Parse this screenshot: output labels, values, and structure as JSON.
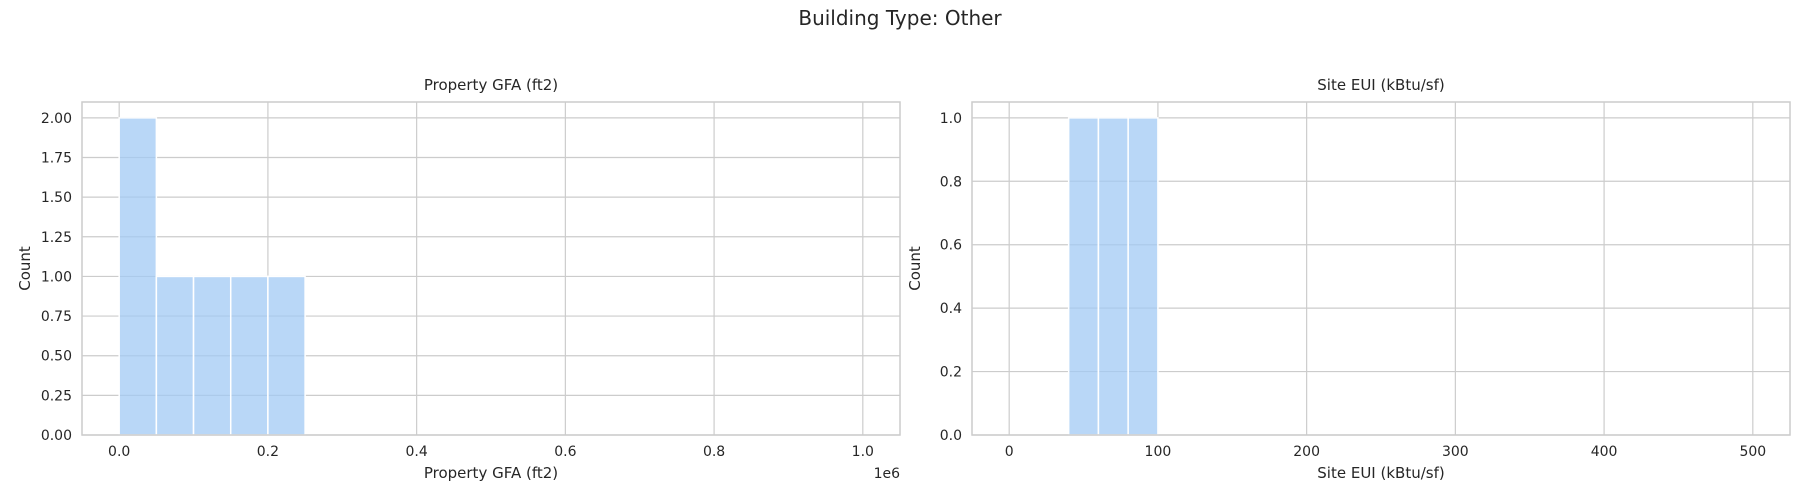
{
  "figure": {
    "title": "Building Type: Other"
  },
  "chart_data": [
    {
      "type": "bar",
      "title": "Property GFA (ft2)",
      "xlabel": "Property GFA (ft2)",
      "ylabel": "Count",
      "x_offset_label": "1e6",
      "xlim": [
        -0.05,
        1.05
      ],
      "ylim": [
        0,
        2.1
      ],
      "xticks": [
        0.0,
        0.2,
        0.4,
        0.6,
        0.8,
        1.0
      ],
      "xtick_labels": [
        "0.0",
        "0.2",
        "0.4",
        "0.6",
        "0.8",
        "1.0"
      ],
      "yticks": [
        0.0,
        0.25,
        0.5,
        0.75,
        1.0,
        1.25,
        1.5,
        1.75,
        2.0
      ],
      "ytick_labels": [
        "0.00",
        "0.25",
        "0.50",
        "0.75",
        "1.00",
        "1.25",
        "1.50",
        "1.75",
        "2.00"
      ],
      "grid": true,
      "color": "#a1c9f4",
      "bins": [
        {
          "x0": 0.0,
          "x1": 0.05,
          "count": 2
        },
        {
          "x0": 0.05,
          "x1": 0.1,
          "count": 1
        },
        {
          "x0": 0.1,
          "x1": 0.15,
          "count": 1
        },
        {
          "x0": 0.15,
          "x1": 0.2,
          "count": 1
        },
        {
          "x0": 0.2,
          "x1": 0.25,
          "count": 1
        }
      ]
    },
    {
      "type": "bar",
      "title": "Site EUI (kBtu/sf)",
      "xlabel": "Site EUI (kBtu/sf)",
      "ylabel": "Count",
      "xlim": [
        -25,
        525
      ],
      "ylim": [
        0,
        1.05
      ],
      "xticks": [
        0,
        100,
        200,
        300,
        400,
        500
      ],
      "xtick_labels": [
        "0",
        "100",
        "200",
        "300",
        "400",
        "500"
      ],
      "yticks": [
        0.0,
        0.2,
        0.4,
        0.6,
        0.8,
        1.0
      ],
      "ytick_labels": [
        "0.0",
        "0.2",
        "0.4",
        "0.6",
        "0.8",
        "1.0"
      ],
      "grid": true,
      "color": "#a1c9f4",
      "bins": [
        {
          "x0": 40,
          "x1": 60,
          "count": 1
        },
        {
          "x0": 60,
          "x1": 80,
          "count": 1
        },
        {
          "x0": 80,
          "x1": 100,
          "count": 1
        }
      ]
    }
  ]
}
